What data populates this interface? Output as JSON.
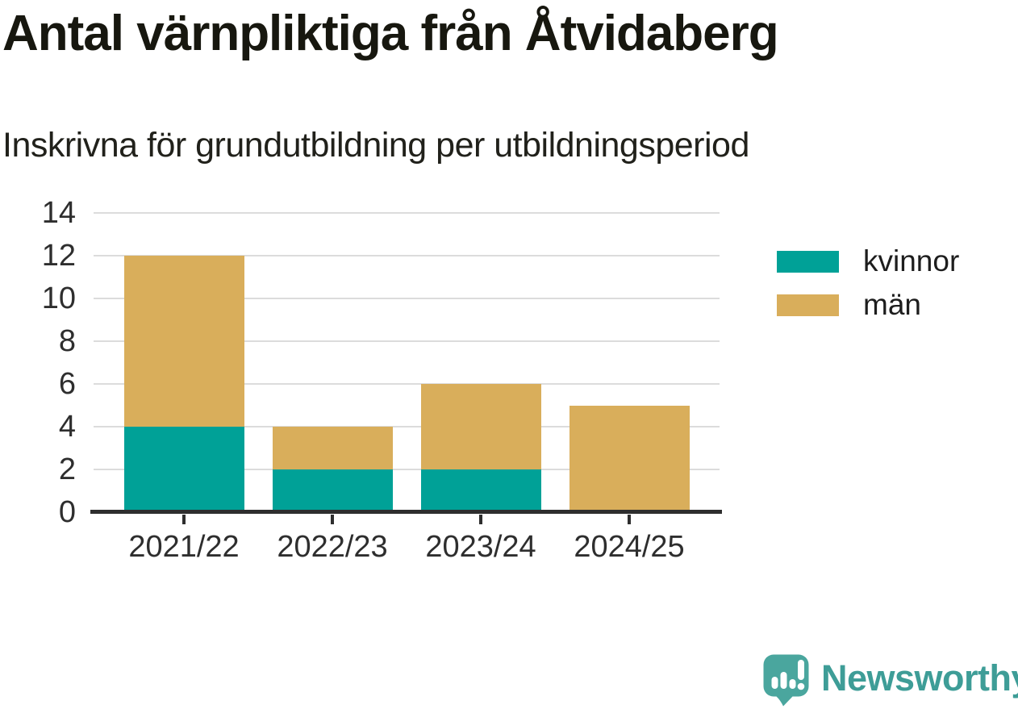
{
  "header": {
    "title": "Antal värnpliktiga från Åtvidaberg",
    "subtitle": "Inskrivna för grundutbildning per utbildningsperiod"
  },
  "chart_data": {
    "type": "bar",
    "stacked": true,
    "title": "Antal värnpliktiga från Åtvidaberg",
    "subtitle": "Inskrivna för grundutbildning per utbildningsperiod",
    "categories": [
      "2021/22",
      "2022/23",
      "2023/24",
      "2024/25"
    ],
    "series": [
      {
        "name": "kvinnor",
        "color": "#00a197",
        "values": [
          4,
          2,
          2,
          0
        ]
      },
      {
        "name": "män",
        "color": "#d9ae5b",
        "values": [
          8,
          2,
          4,
          5
        ]
      }
    ],
    "totals": [
      12,
      4,
      6,
      5
    ],
    "xlabel": "",
    "ylabel": "",
    "ylim": [
      0,
      14
    ],
    "yticks": [
      0,
      2,
      4,
      6,
      8,
      10,
      12,
      14
    ],
    "grid": true,
    "legend_position": "right"
  },
  "legend": {
    "items": [
      {
        "label": "kvinnor",
        "color": "#00a197"
      },
      {
        "label": "män",
        "color": "#d9ae5b"
      }
    ]
  },
  "footer": {
    "brand": "Newsworthy",
    "logo_icon": "speech-bubble-bar-chart-exclamation-icon",
    "brand_color": "#3e9d97",
    "logo_mark_color": "#4aa69e"
  },
  "colors": {
    "axis": "#2e2e2e",
    "grid": "#dcdcdc",
    "title_text": "#17170f"
  }
}
